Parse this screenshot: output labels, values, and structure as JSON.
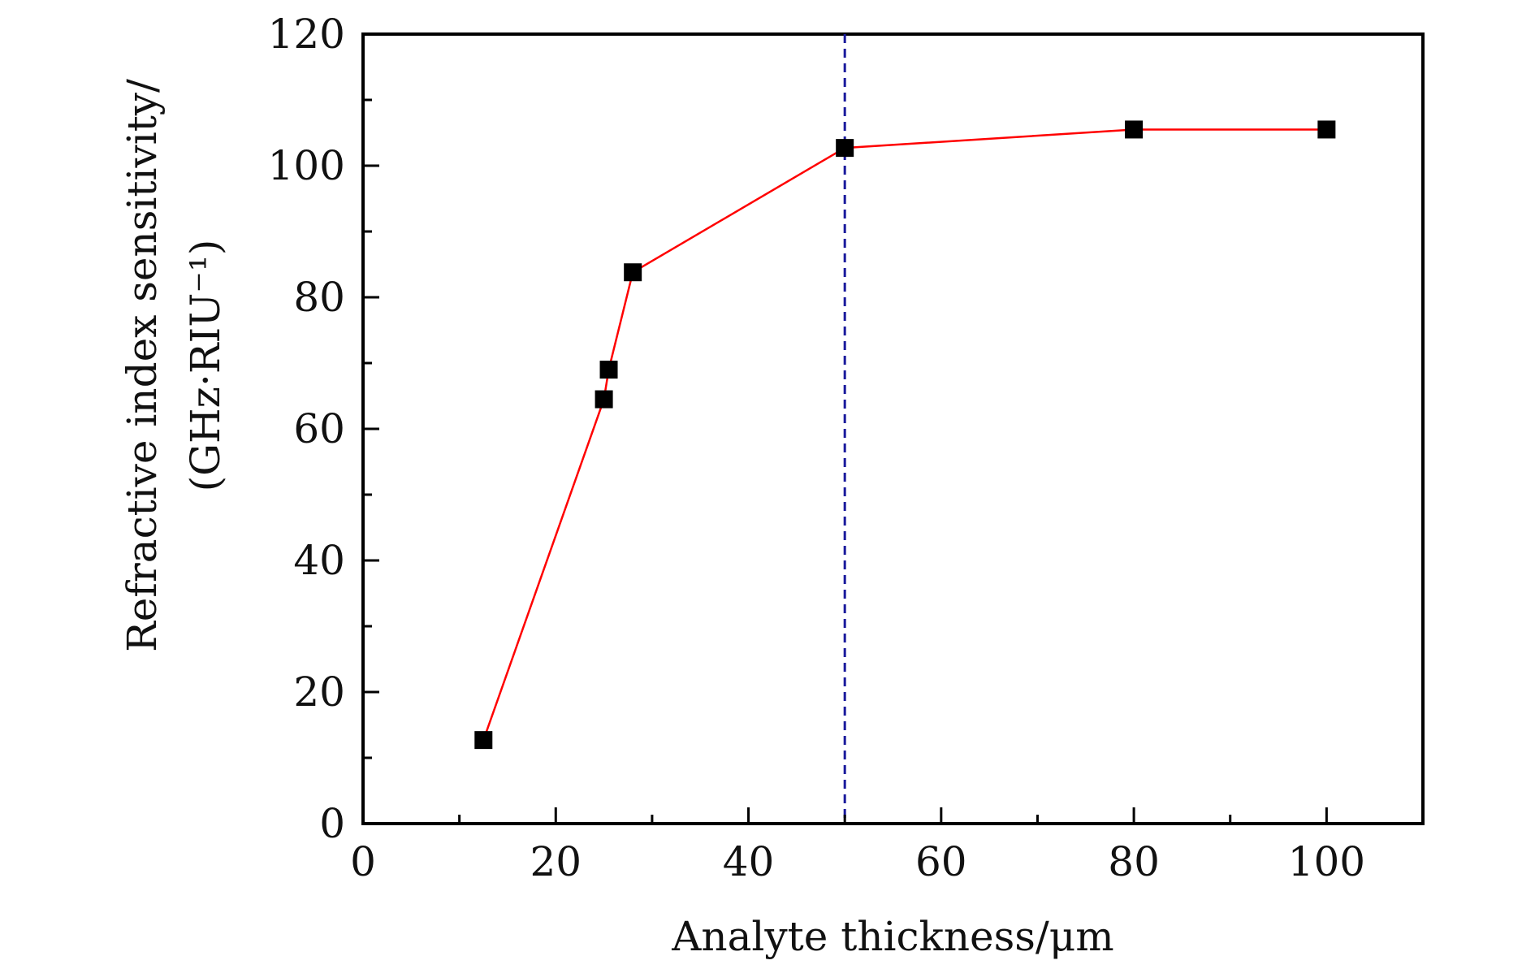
{
  "chart_data": {
    "type": "line",
    "title": "",
    "xlabel": "Analyte thickness/μm",
    "ylabel_line1": "Refractive index sensitivity/",
    "ylabel_line2": "(GHz·RIU⁻¹)",
    "xlim": [
      0,
      110
    ],
    "ylim": [
      0,
      120
    ],
    "x_ticks": [
      0,
      20,
      40,
      60,
      80,
      100
    ],
    "x_tick_labels": [
      "0",
      "20",
      "40",
      "60",
      "80",
      "100"
    ],
    "x_minor_ticks": [
      10,
      30,
      50,
      70,
      90
    ],
    "y_ticks": [
      0,
      20,
      40,
      60,
      80,
      100,
      120
    ],
    "y_tick_labels": [
      "0",
      "20",
      "40",
      "60",
      "80",
      "100",
      "120"
    ],
    "y_minor_ticks": [
      10,
      30,
      50,
      70,
      90,
      110
    ],
    "grid": false,
    "legend": "none",
    "series": [
      {
        "x": [
          12.5,
          25,
          25.5,
          28,
          50,
          80,
          100
        ],
        "y": [
          12.7,
          64.5,
          69,
          83.8,
          102.7,
          105.5,
          105.5
        ],
        "line_color": "#ff0000",
        "marker": "square",
        "marker_color": "#000000"
      }
    ],
    "reference_lines": [
      {
        "orientation": "vertical",
        "x": 50,
        "style": "dashed",
        "color": "#1a1a9c"
      }
    ]
  }
}
